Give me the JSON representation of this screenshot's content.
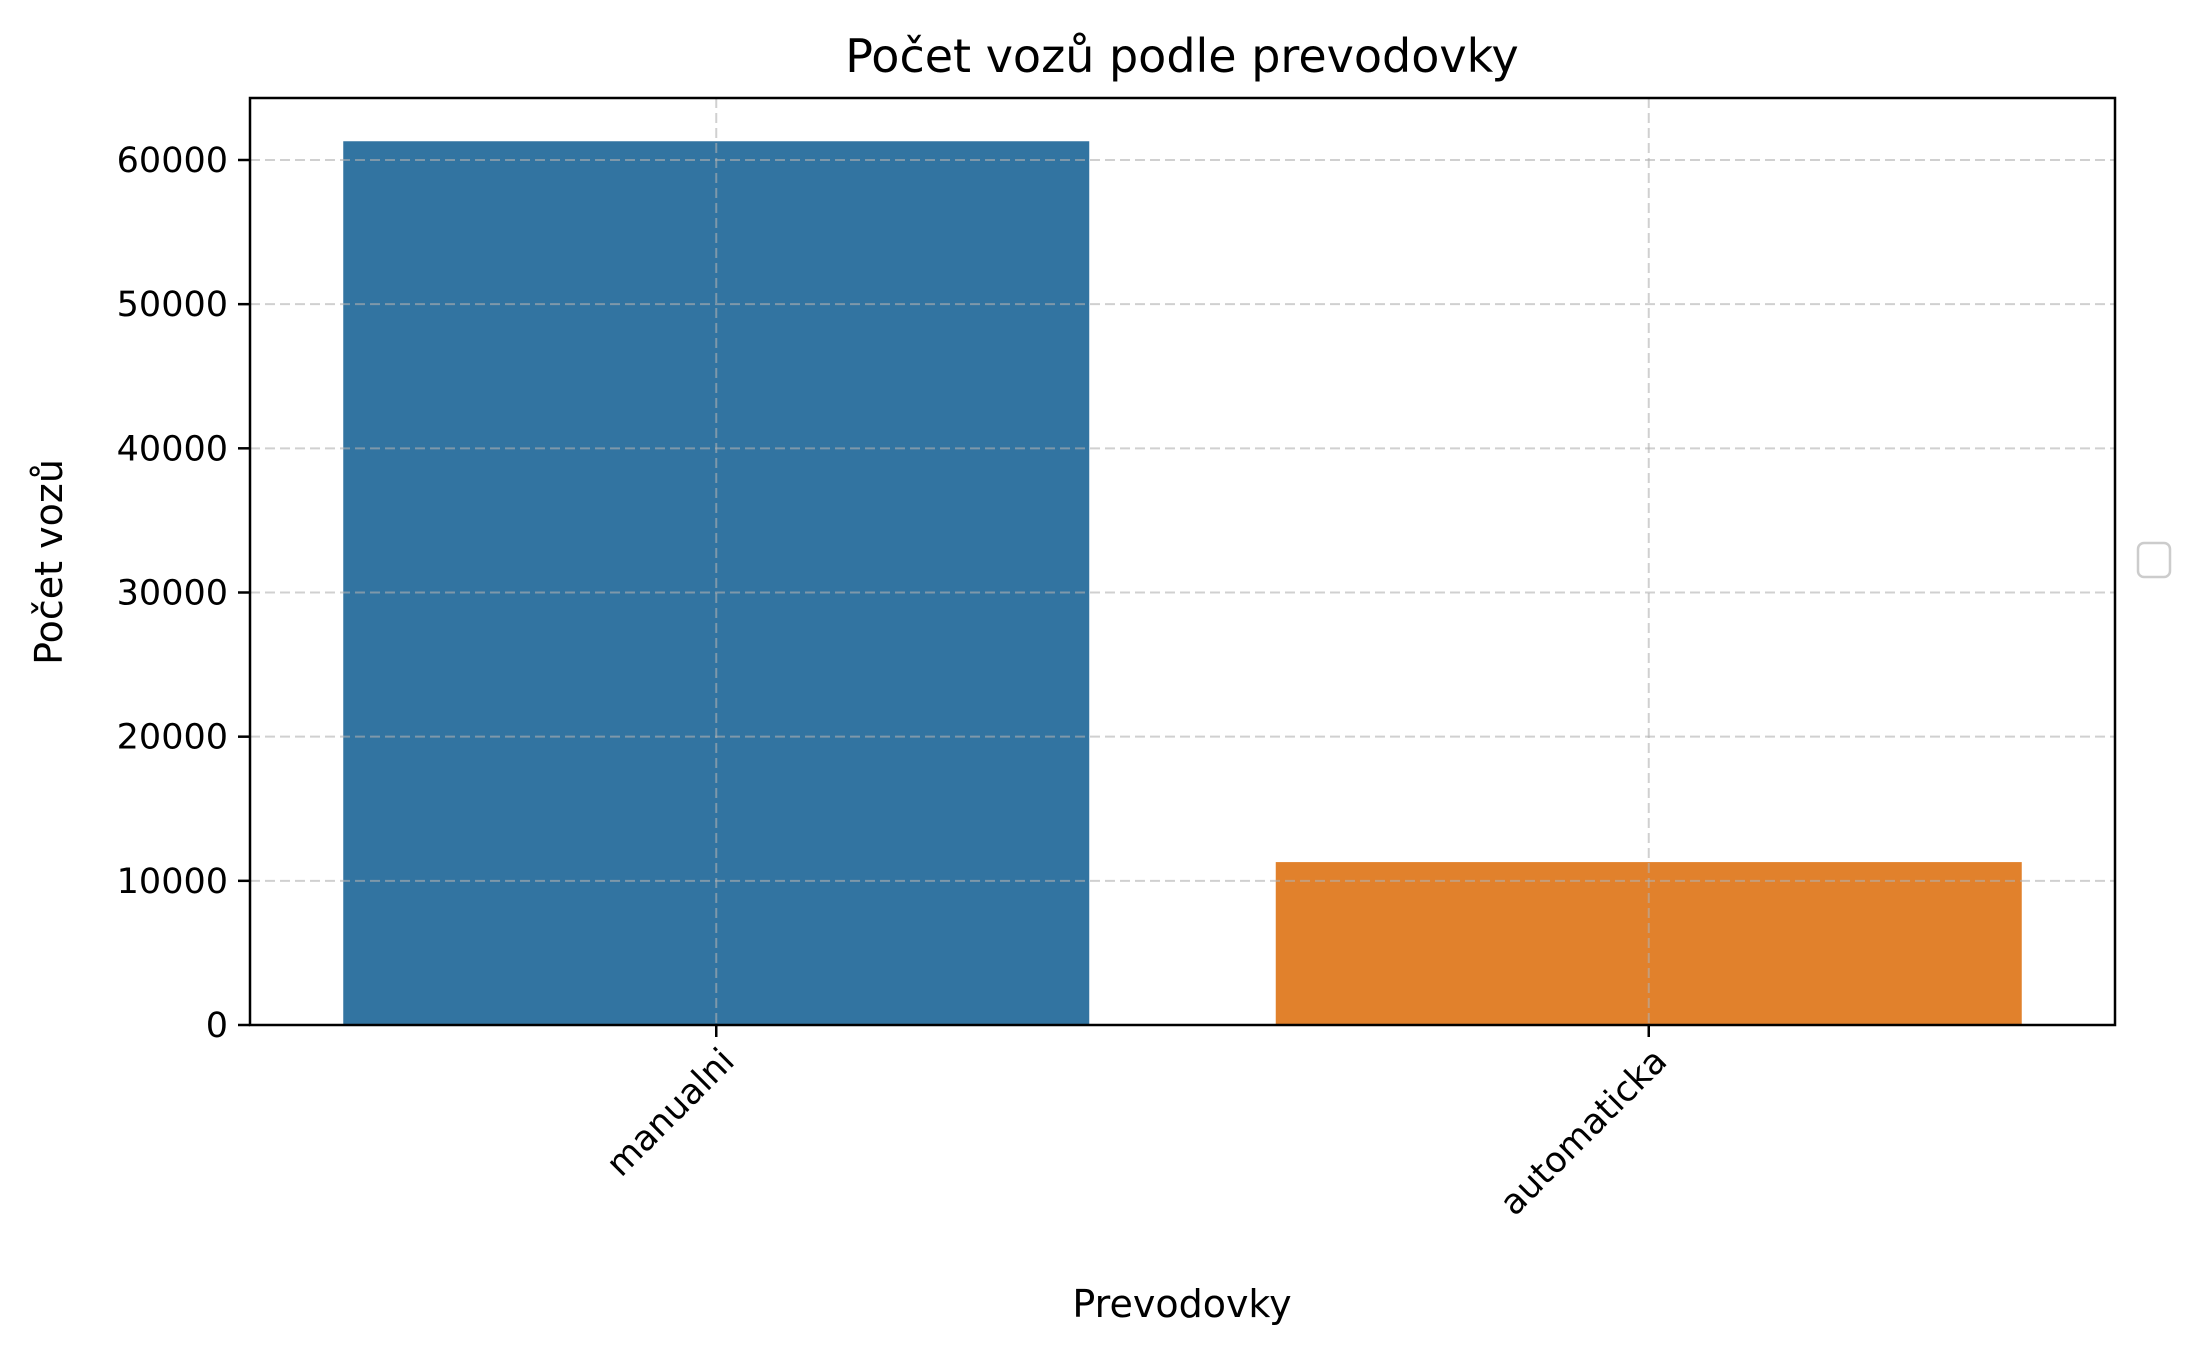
{
  "chart_data": {
    "type": "bar",
    "title": "Počet vozů podle prevodovky",
    "xlabel": "Prevodovky",
    "ylabel": "Počet vozů",
    "categories": [
      "manualni",
      "automaticka"
    ],
    "values": [
      61300,
      11300
    ],
    "colors": [
      "#3274a1",
      "#e1812c"
    ],
    "ylim": [
      0,
      64300
    ],
    "yticks": [
      0,
      10000,
      20000,
      30000,
      40000,
      50000,
      60000
    ],
    "grid": true,
    "legend": "center-right, empty"
  }
}
